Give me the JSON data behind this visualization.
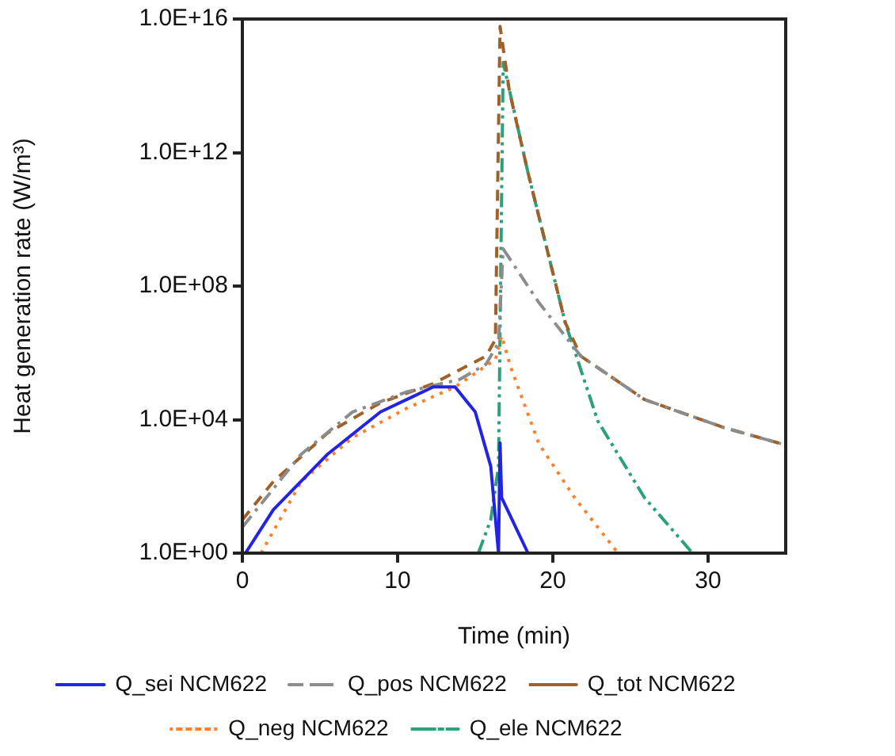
{
  "chart_data": {
    "type": "line",
    "xlabel": "Time (min)",
    "ylabel": "Heat generation rate (W/m³)",
    "log": "y",
    "xlim": [
      0,
      35
    ],
    "xticks": [
      0,
      10,
      20,
      30
    ],
    "ylim": [
      1,
      1e+16
    ],
    "yticks": [
      {
        "value": 1,
        "label": "1.0E+00"
      },
      {
        "value": 10000,
        "label": "1.0E+04"
      },
      {
        "value": 100000000,
        "label": "1.0E+08"
      },
      {
        "value": 1000000000000,
        "label": "1.0E+12"
      },
      {
        "value": 1e+16,
        "label": "1.0E+16"
      }
    ],
    "grid": false,
    "legend": "bottom",
    "marker": "none",
    "series": [
      {
        "name": "Q_sei NCM622",
        "color": "#2323e6",
        "line_style": "solid",
        "x": [
          0.2,
          2,
          5.5,
          8.9,
          12.3,
          13.7,
          15,
          16,
          16.5,
          16.6,
          16.7,
          18.4
        ],
        "values": [
          1,
          20,
          930,
          17000,
          95000,
          95000,
          17000,
          400,
          1,
          2000,
          46,
          1
        ]
      },
      {
        "name": "Q_pos NCM622",
        "color": "#8c8c8c",
        "line_style": "dashdot",
        "x": [
          0,
          3.8,
          7.1,
          10.6,
          14,
          15.7,
          16.5,
          16.8,
          19.1,
          21.8,
          25.9,
          31,
          34.7
        ],
        "values": [
          6,
          930,
          17000,
          68000,
          160000,
          460000,
          2000000,
          1300000000,
          32000000,
          800000,
          40000,
          5800,
          1900
        ]
      },
      {
        "name": "Q_tot NCM622",
        "color": "#a0602a",
        "line_style": "dashed",
        "x": [
          0,
          2,
          5.5,
          8.9,
          12.3,
          15.7,
          16.3,
          16.6,
          17.2,
          18.4,
          20.8,
          21.8,
          25.9,
          31,
          34.7
        ],
        "values": [
          10,
          140,
          4000,
          32000,
          120000,
          800000,
          2500000,
          6000000000000000,
          70000000000000,
          250000000000,
          8000000,
          800000,
          40000,
          5800,
          1900
        ]
      },
      {
        "name": "Q_neg NCM622",
        "color": "#ff7f27",
        "line_style": "dotted",
        "x": [
          1.2,
          3.8,
          7.1,
          10.6,
          13.7,
          16.3,
          16.7,
          17.3,
          19.1,
          21.4,
          24.2
        ],
        "values": [
          1,
          140,
          2900,
          22000,
          95000,
          630000,
          3200000,
          360000,
          1900,
          46,
          1
        ]
      },
      {
        "name": "Q_ele NCM622",
        "color": "#2ca07a",
        "line_style": "dashdotdot",
        "x": [
          15.2,
          16,
          16.5,
          16.8,
          18.4,
          20.8,
          22.9,
          25.9,
          29
        ],
        "values": [
          1,
          10,
          400,
          500000000000000,
          250000000000,
          8000000,
          9000,
          46,
          1
        ]
      }
    ]
  }
}
